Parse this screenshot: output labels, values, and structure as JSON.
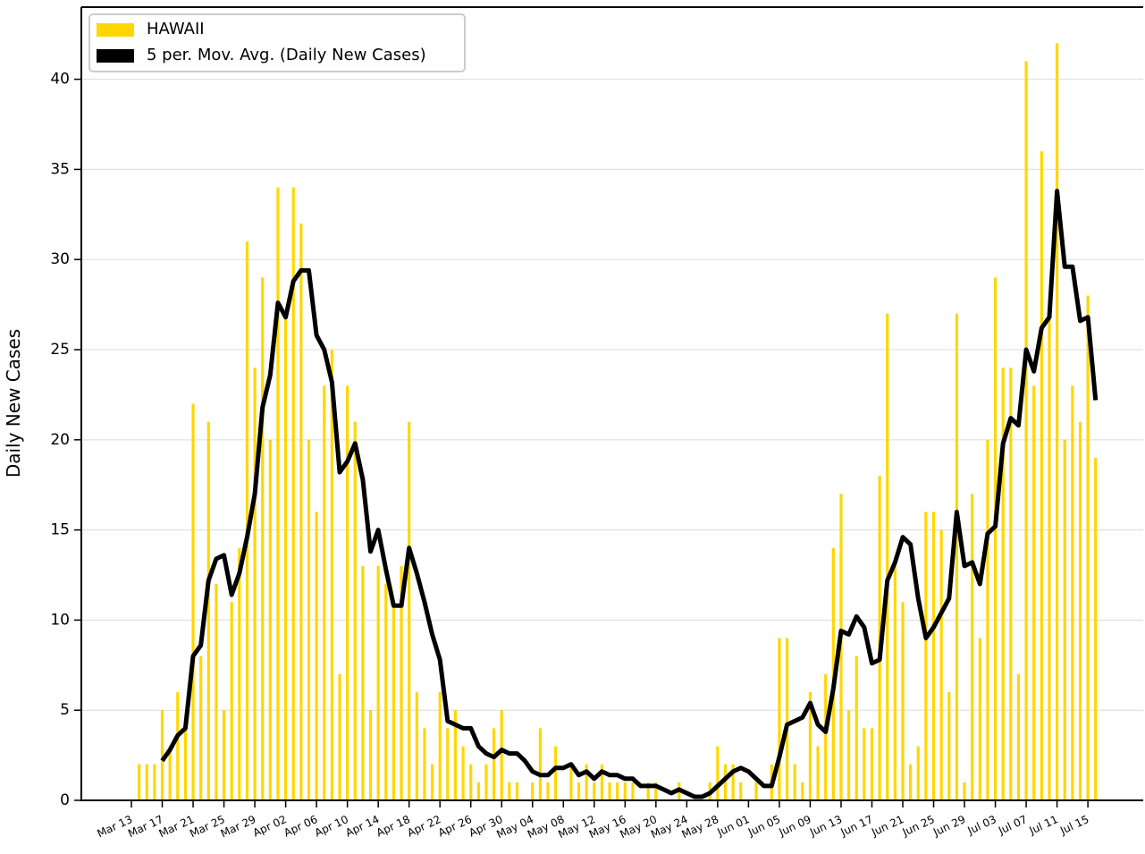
{
  "chart_data": {
    "type": "bar",
    "y_label": "Daily New Cases",
    "categories": [
      "Mar 13",
      null,
      null,
      null,
      "Mar 17",
      null,
      null,
      null,
      "Mar 21",
      null,
      null,
      null,
      "Mar 25",
      null,
      null,
      null,
      "Mar 29",
      null,
      null,
      null,
      "Apr 02",
      null,
      null,
      null,
      "Apr 06",
      null,
      null,
      null,
      "Apr 10",
      null,
      null,
      null,
      "Apr 14",
      null,
      null,
      null,
      "Apr 18",
      null,
      null,
      null,
      "Apr 22",
      null,
      null,
      null,
      "Apr 26",
      null,
      null,
      null,
      "Apr 30",
      null,
      null,
      null,
      "May 04",
      null,
      null,
      null,
      "May 08",
      null,
      null,
      null,
      "May 12",
      null,
      null,
      null,
      "May 16",
      null,
      null,
      null,
      "May 20",
      null,
      null,
      null,
      "May 24",
      null,
      null,
      null,
      "May 28",
      null,
      null,
      null,
      "Jun 01",
      null,
      null,
      null,
      "Jun 05",
      null,
      null,
      null,
      "Jun 09",
      null,
      null,
      null,
      "Jun 13",
      null,
      null,
      null,
      "Jun 17",
      null,
      null,
      null,
      "Jun 21",
      null,
      null,
      null,
      "Jun 25",
      null,
      null,
      null,
      "Jun 29",
      null,
      null,
      null,
      "Jul 03",
      null,
      null,
      null,
      "Jul 07",
      null,
      null,
      null,
      "Jul 11",
      null,
      null,
      null,
      "Jul 15",
      null
    ],
    "series": [
      {
        "name": "HAWAII",
        "type": "bar",
        "color": "#ffd700",
        "values": [
          0,
          2,
          2,
          2,
          5,
          3,
          6,
          4,
          22,
          8,
          21,
          12,
          5,
          11,
          14,
          31,
          24,
          29,
          20,
          34,
          27,
          34,
          32,
          20,
          16,
          23,
          25,
          7,
          23,
          21,
          13,
          5,
          13,
          12,
          11,
          13,
          21,
          6,
          4,
          2,
          6,
          4,
          5,
          3,
          2,
          1,
          2,
          4,
          5,
          1,
          1,
          0,
          1,
          4,
          1,
          3,
          0,
          2,
          1,
          2,
          1,
          2,
          1,
          1,
          1,
          1,
          0,
          1,
          1,
          0,
          0,
          1,
          0,
          0,
          0,
          1,
          3,
          2,
          2,
          1,
          0,
          1,
          0,
          2,
          9,
          9,
          2,
          1,
          6,
          3,
          7,
          14,
          17,
          5,
          8,
          4,
          4,
          18,
          27,
          13,
          11,
          2,
          3,
          16,
          16,
          15,
          6,
          27,
          1,
          17,
          9,
          20,
          29,
          24,
          24,
          7,
          41,
          23,
          36,
          27,
          42,
          20,
          23,
          21,
          28,
          19
        ]
      },
      {
        "name": "5 per. Mov. Avg. (Daily New Cases)",
        "type": "line",
        "color": "#000000",
        "values": [
          null,
          null,
          null,
          null,
          2.2,
          2.8,
          3.6,
          4.0,
          8.0,
          8.6,
          12.2,
          13.4,
          13.6,
          11.4,
          12.6,
          14.6,
          17.0,
          21.8,
          23.6,
          27.6,
          26.8,
          28.8,
          29.4,
          29.4,
          25.8,
          25.0,
          23.2,
          18.2,
          18.8,
          19.8,
          17.8,
          13.8,
          15.0,
          12.8,
          10.8,
          10.8,
          14.0,
          12.6,
          11.0,
          9.2,
          7.8,
          4.4,
          4.2,
          4.0,
          4.0,
          3.0,
          2.6,
          2.4,
          2.8,
          2.6,
          2.6,
          2.2,
          1.6,
          1.4,
          1.4,
          1.8,
          1.8,
          2.0,
          1.4,
          1.6,
          1.2,
          1.6,
          1.4,
          1.4,
          1.2,
          1.2,
          0.8,
          0.8,
          0.8,
          0.6,
          0.4,
          0.6,
          0.4,
          0.2,
          0.2,
          0.4,
          0.8,
          1.2,
          1.6,
          1.8,
          1.6,
          1.2,
          0.8,
          0.8,
          2.4,
          4.2,
          4.4,
          4.6,
          5.4,
          4.2,
          3.8,
          6.2,
          9.4,
          9.2,
          10.2,
          9.6,
          7.6,
          7.8,
          12.2,
          13.2,
          14.6,
          14.2,
          11.2,
          9.0,
          9.6,
          10.4,
          11.2,
          16.0,
          13.0,
          13.2,
          12.0,
          14.8,
          15.2,
          19.8,
          21.2,
          20.8,
          25.0,
          23.8,
          26.2,
          26.8,
          33.8,
          29.6,
          29.6,
          26.6,
          26.8,
          22.2
        ]
      }
    ],
    "ylim": [
      0,
      44
    ],
    "yticks": [
      0,
      5,
      10,
      15,
      20,
      25,
      30,
      35,
      40
    ],
    "grid": true,
    "legend": "upper left"
  }
}
